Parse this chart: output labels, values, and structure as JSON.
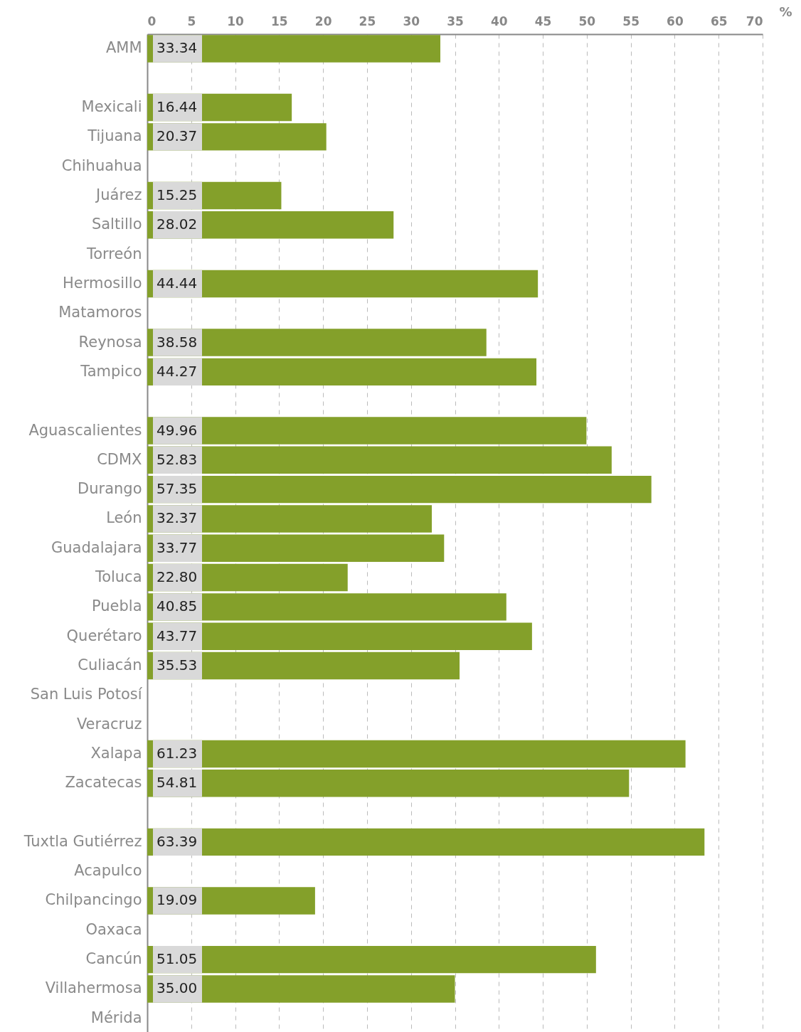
{
  "chart_data": {
    "type": "bar",
    "orientation": "horizontal",
    "categories": [
      "AMM",
      null,
      "Mexicali",
      "Tijuana",
      "Chihuahua",
      "Juárez",
      "Saltillo",
      "Torreón",
      "Hermosillo",
      "Matamoros",
      "Reynosa",
      "Tampico",
      null,
      "Aguascalientes",
      "CDMX",
      "Durango",
      "León",
      "Guadalajara",
      "Toluca",
      "Puebla",
      "Querétaro",
      "Culiacán",
      "San Luis Potosí",
      "Veracruz",
      "Xalapa",
      "Zacatecas",
      null,
      "Tuxtla Gutiérrez",
      "Acapulco",
      "Chilpancingo",
      "Oaxaca",
      "Cancún",
      "Villahermosa",
      "Mérida"
    ],
    "series": [
      {
        "color": "#84a02a",
        "values": [
          33.34,
          null,
          16.44,
          20.37,
          null,
          15.25,
          28.02,
          null,
          44.44,
          null,
          38.58,
          44.27,
          null,
          49.96,
          52.83,
          57.35,
          32.37,
          33.77,
          22.8,
          40.85,
          43.77,
          35.53,
          null,
          null,
          61.23,
          54.81,
          null,
          63.39,
          null,
          19.09,
          null,
          51.05,
          35.0,
          null
        ]
      }
    ],
    "value_labels": [
      "33.34",
      null,
      "16.44",
      "20.37",
      null,
      "15.25",
      "28.02",
      null,
      "44.44",
      null,
      "38.58",
      "44.27",
      null,
      "49.96",
      "52.83",
      "57.35",
      "32.37",
      "33.77",
      "22.80",
      "40.85",
      "43.77",
      "35.53",
      null,
      null,
      "61.23",
      "54.81",
      null,
      "63.39",
      null,
      "19.09",
      null,
      "51.05",
      "35.00",
      null
    ],
    "xlabel": "%",
    "xlim": [
      0,
      70
    ],
    "xticks": [
      0,
      5,
      10,
      15,
      20,
      25,
      30,
      35,
      40,
      45,
      50,
      55,
      60,
      65,
      70
    ],
    "grid": "x"
  }
}
